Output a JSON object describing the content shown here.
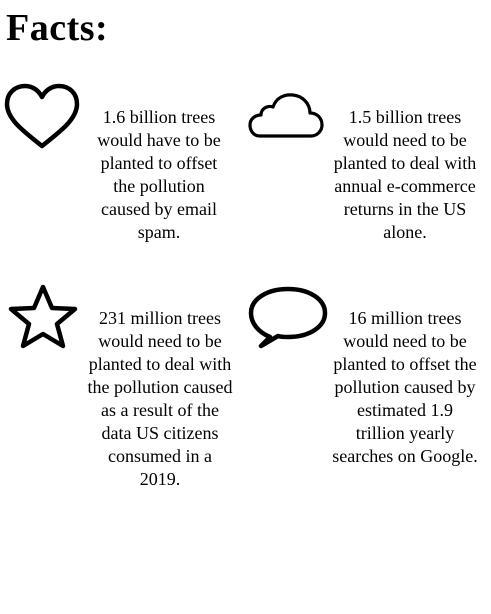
{
  "page": {
    "title": "Facts:"
  },
  "facts": [
    {
      "icon": "heart-icon",
      "text": "1.6 billion trees would have to be planted to offset the pollution caused by email spam."
    },
    {
      "icon": "cloud-icon",
      "text": "1.5 billion trees would need to be planted to deal with annual e-commerce returns in the US alone."
    },
    {
      "icon": "star-icon",
      "text": "231 million trees would need to be planted to deal with the pollution caused as a result of the data US citizens consumed in a 2019."
    },
    {
      "icon": "speech-bubble-icon",
      "text": "16 million trees would need to be planted to offset the pollution caused by estimated 1.9 trillion yearly searches on Google."
    }
  ],
  "colors": {
    "text": "#000000",
    "icon_stroke": "#000000",
    "background": "#ffffff"
  }
}
